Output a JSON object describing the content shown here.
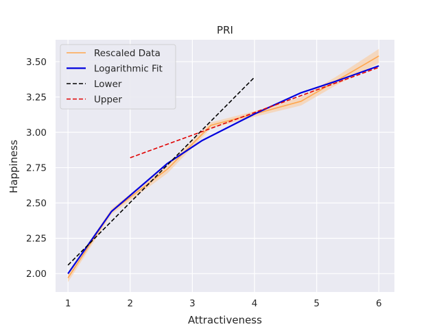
{
  "chart_data": {
    "type": "line",
    "title": "PRI",
    "xlabel": "Attractiveness",
    "ylabel": "Happiness",
    "xlim": [
      0.8,
      6.25
    ],
    "ylim": [
      1.87,
      3.655
    ],
    "xticks": [
      1,
      2,
      3,
      4,
      5,
      6
    ],
    "xtick_labels": [
      "1",
      "2",
      "3",
      "4",
      "5",
      "6"
    ],
    "yticks": [
      2.0,
      2.25,
      2.5,
      2.75,
      3.0,
      3.25,
      3.5
    ],
    "ytick_labels": [
      "2.00",
      "2.25",
      "2.50",
      "2.75",
      "3.00",
      "3.25",
      "3.50"
    ],
    "grid": true,
    "legend_position": "top-left",
    "background": "#eaeaf2",
    "series": [
      {
        "name": "Rescaled Data",
        "style": "solid",
        "color": "#ffa64d",
        "band_color": "#f8cfa8",
        "x": [
          1,
          1.7,
          2.6,
          3.3,
          4.0,
          4.75,
          5.3,
          6.0
        ],
        "y": [
          1.97,
          2.44,
          2.74,
          3.05,
          3.13,
          3.22,
          3.36,
          3.54
        ],
        "band_upper": [
          2.0,
          2.46,
          2.77,
          3.07,
          3.15,
          3.25,
          3.39,
          3.59
        ],
        "band_lower": [
          1.94,
          2.42,
          2.71,
          3.03,
          3.11,
          3.19,
          3.33,
          3.49
        ]
      },
      {
        "name": "Logarithmic Fit",
        "style": "solid",
        "color": "#0000dd",
        "x": [
          1,
          1.7,
          2.6,
          3.15,
          4.0,
          4.75,
          5.3,
          6.0
        ],
        "y": [
          2.0,
          2.44,
          2.78,
          2.94,
          3.13,
          3.28,
          3.36,
          3.47
        ]
      },
      {
        "name": "Lower",
        "style": "dashed",
        "color": "#000000",
        "x": [
          1,
          4
        ],
        "y": [
          2.06,
          3.39
        ]
      },
      {
        "name": "Upper",
        "style": "dashed",
        "color": "#e00000",
        "x": [
          2,
          6
        ],
        "y": [
          2.82,
          3.46
        ]
      }
    ]
  }
}
